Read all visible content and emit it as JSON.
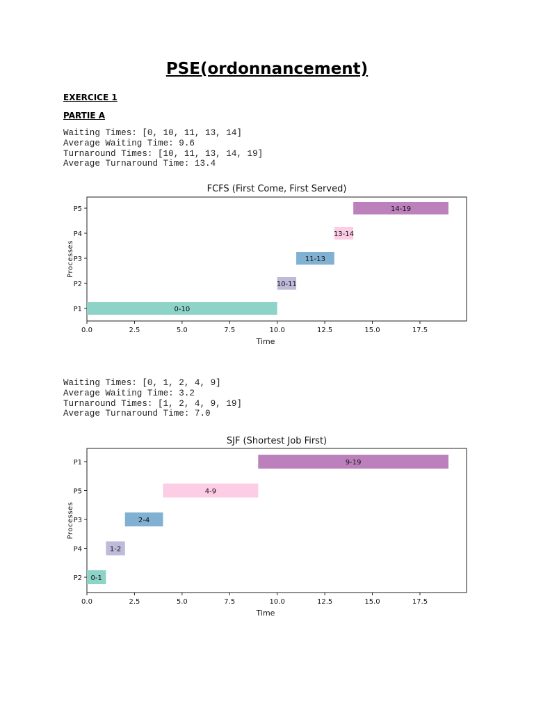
{
  "document": {
    "title": "PSE(ordonnancement)",
    "exercise": "EXERCICE 1",
    "part": "PARTIE A"
  },
  "fcfs": {
    "stats": [
      "Waiting Times: [0, 10, 11, 13, 14]",
      "Average Waiting Time: 9.6",
      "Turnaround Times: [10, 11, 13, 14, 19]",
      "Average Turnaround Time: 13.4"
    ]
  },
  "sjf": {
    "stats": [
      "Waiting Times: [0, 1, 2, 4, 9]",
      "Average Waiting Time: 3.2",
      "Turnaround Times: [1, 2, 4, 9, 19]",
      "Average Turnaround Time: 7.0"
    ]
  },
  "chart_data": [
    {
      "type": "bar",
      "orientation": "horizontal",
      "title": "FCFS (First Come, First Served)",
      "xlabel": "Time",
      "ylabel": "Processes",
      "xlim": [
        0,
        20
      ],
      "xticks": [
        "0.0",
        "2.5",
        "5.0",
        "7.5",
        "10.0",
        "12.5",
        "15.0",
        "17.5"
      ],
      "xtick_values": [
        0,
        2.5,
        5,
        7.5,
        10,
        12.5,
        15,
        17.5
      ],
      "categories": [
        "P1",
        "P2",
        "P3",
        "P4",
        "P5"
      ],
      "bars": [
        {
          "process": "P1",
          "start": 0,
          "end": 10,
          "label": "0-10",
          "color": "#8dd3c7"
        },
        {
          "process": "P2",
          "start": 10,
          "end": 11,
          "label": "10-11",
          "color": "#bebada"
        },
        {
          "process": "P3",
          "start": 11,
          "end": 13,
          "label": "11-13",
          "color": "#80b1d3"
        },
        {
          "process": "P4",
          "start": 13,
          "end": 14,
          "label": "13-14",
          "color": "#fccde5"
        },
        {
          "process": "P5",
          "start": 14,
          "end": 19,
          "label": "14-19",
          "color": "#bc80bd"
        }
      ]
    },
    {
      "type": "bar",
      "orientation": "horizontal",
      "title": "SJF (Shortest Job First)",
      "xlabel": "Time",
      "ylabel": "Processes",
      "xlim": [
        0,
        20
      ],
      "xticks": [
        "0.0",
        "2.5",
        "5.0",
        "7.5",
        "10.0",
        "12.5",
        "15.0",
        "17.5"
      ],
      "xtick_values": [
        0,
        2.5,
        5,
        7.5,
        10,
        12.5,
        15,
        17.5
      ],
      "categories": [
        "P2",
        "P4",
        "P3",
        "P5",
        "P1"
      ],
      "bars": [
        {
          "process": "P2",
          "start": 0,
          "end": 1,
          "label": "0-1",
          "color": "#8dd3c7"
        },
        {
          "process": "P4",
          "start": 1,
          "end": 2,
          "label": "1-2",
          "color": "#bebada"
        },
        {
          "process": "P3",
          "start": 2,
          "end": 4,
          "label": "2-4",
          "color": "#80b1d3"
        },
        {
          "process": "P5",
          "start": 4,
          "end": 9,
          "label": "4-9",
          "color": "#fccde5"
        },
        {
          "process": "P1",
          "start": 9,
          "end": 19,
          "label": "9-19",
          "color": "#bc80bd"
        }
      ]
    }
  ]
}
